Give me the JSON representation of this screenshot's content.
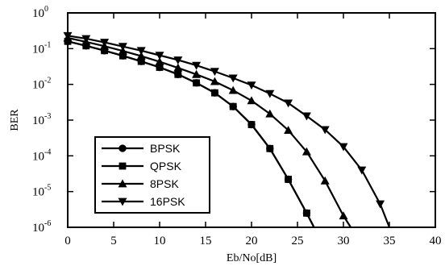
{
  "chart_data": {
    "type": "line",
    "xlabel": "Eb/No[dB]",
    "ylabel": "BER",
    "xlim": [
      0,
      40
    ],
    "ylim": [
      1e-06,
      1
    ],
    "yscale": "log",
    "grid": false,
    "legend_position": "lower-left",
    "xticks": [
      "0",
      "5",
      "10",
      "15",
      "20",
      "25",
      "30",
      "35",
      "40"
    ],
    "yticks": [
      {
        "base": "10",
        "exp": "0"
      },
      {
        "base": "10",
        "exp": "-1"
      },
      {
        "base": "10",
        "exp": "-2"
      },
      {
        "base": "10",
        "exp": "-3"
      },
      {
        "base": "10",
        "exp": "-4"
      },
      {
        "base": "10",
        "exp": "-5"
      },
      {
        "base": "10",
        "exp": "-6"
      }
    ],
    "series": [
      {
        "name": "BPSK",
        "marker": "circle",
        "x": [
          0,
          2,
          4,
          6,
          8,
          10,
          12,
          14,
          16,
          18,
          20,
          22,
          24,
          26,
          26.8
        ],
        "y": [
          0.16,
          0.12,
          0.088,
          0.063,
          0.044,
          0.03,
          0.019,
          0.011,
          0.0058,
          0.0024,
          0.00075,
          0.00016,
          2.2e-05,
          2.5e-06,
          1e-06
        ]
      },
      {
        "name": "QPSK",
        "marker": "square",
        "x": [
          0,
          2,
          4,
          6,
          8,
          10,
          12,
          14,
          16,
          18,
          20,
          22,
          24,
          26,
          26.8
        ],
        "y": [
          0.16,
          0.12,
          0.088,
          0.063,
          0.044,
          0.03,
          0.019,
          0.011,
          0.0058,
          0.0024,
          0.00075,
          0.00016,
          2.2e-05,
          2.5e-06,
          1e-06
        ]
      },
      {
        "name": "8PSK",
        "marker": "triangle-up",
        "x": [
          0,
          2,
          4,
          6,
          8,
          10,
          12,
          14,
          16,
          18,
          20,
          22,
          24,
          26,
          28,
          30,
          30.8
        ],
        "y": [
          0.2,
          0.155,
          0.117,
          0.086,
          0.062,
          0.043,
          0.029,
          0.019,
          0.012,
          0.0068,
          0.0035,
          0.0015,
          0.00052,
          0.00013,
          2e-05,
          2.1e-06,
          1e-06
        ]
      },
      {
        "name": "16PSK",
        "marker": "triangle-down",
        "x": [
          0,
          2,
          4,
          6,
          8,
          10,
          12,
          14,
          16,
          18,
          20,
          22,
          24,
          26,
          28,
          30,
          32,
          34,
          35
        ],
        "y": [
          0.23,
          0.19,
          0.15,
          0.115,
          0.088,
          0.065,
          0.048,
          0.034,
          0.023,
          0.015,
          0.0095,
          0.0055,
          0.003,
          0.0013,
          0.00054,
          0.00018,
          4e-05,
          4.5e-06,
          1e-06
        ]
      }
    ]
  }
}
